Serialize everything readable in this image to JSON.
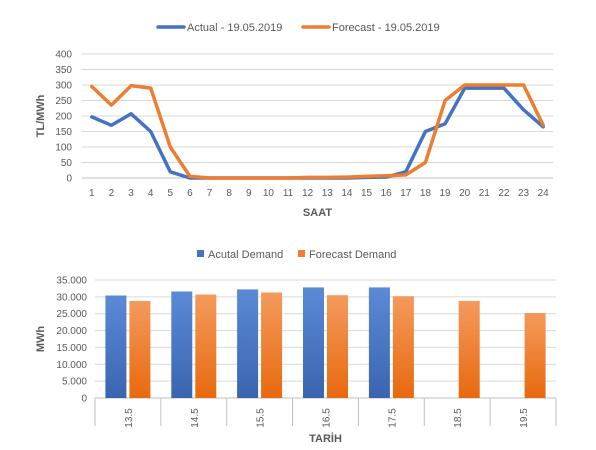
{
  "chart_data": [
    {
      "type": "line",
      "title": "",
      "xlabel": "SAAT",
      "ylabel": "TL/MWh",
      "x": [
        1,
        2,
        3,
        4,
        5,
        6,
        7,
        8,
        9,
        10,
        11,
        12,
        13,
        14,
        15,
        16,
        17,
        18,
        19,
        20,
        21,
        22,
        23,
        24
      ],
      "ylim": [
        0,
        400
      ],
      "yticks": [
        "0",
        "50",
        "100",
        "150",
        "200",
        "250",
        "300",
        "350",
        "400"
      ],
      "grid": true,
      "legend": "top-center",
      "series": [
        {
          "name": "Actual - 19.05.2019",
          "color": "#4472c4",
          "values": [
            197,
            170,
            207,
            150,
            20,
            0,
            0,
            0,
            0,
            0,
            0,
            0,
            0,
            0,
            2,
            3,
            20,
            150,
            175,
            290,
            290,
            290,
            220,
            165
          ]
        },
        {
          "name": "Forecast - 19.05.2019",
          "color": "#ed7d31",
          "values": [
            295,
            235,
            298,
            290,
            100,
            5,
            0,
            0,
            0,
            0,
            0,
            2,
            2,
            3,
            5,
            7,
            10,
            50,
            250,
            300,
            300,
            300,
            300,
            170
          ]
        }
      ]
    },
    {
      "type": "bar",
      "title": "",
      "xlabel": "TARİH",
      "ylabel": "MWh",
      "categories": [
        "13.5",
        "14.5",
        "15.5",
        "16.5",
        "17.5",
        "18.5",
        "19.5"
      ],
      "ylim": [
        0,
        35000
      ],
      "yticks": [
        "0",
        "5.000",
        "10.000",
        "15.000",
        "20.000",
        "25.000",
        "30.000",
        "35.000"
      ],
      "grid": true,
      "legend": "top-center",
      "series": [
        {
          "name": "Acutal Demand",
          "color": "#4472c4",
          "values": [
            30400,
            31600,
            32200,
            32800,
            32800,
            null,
            null
          ]
        },
        {
          "name": "Forecast Demand",
          "color": "#ed7d31",
          "values": [
            28800,
            30700,
            31300,
            30500,
            30200,
            28800,
            25200
          ]
        }
      ]
    }
  ]
}
